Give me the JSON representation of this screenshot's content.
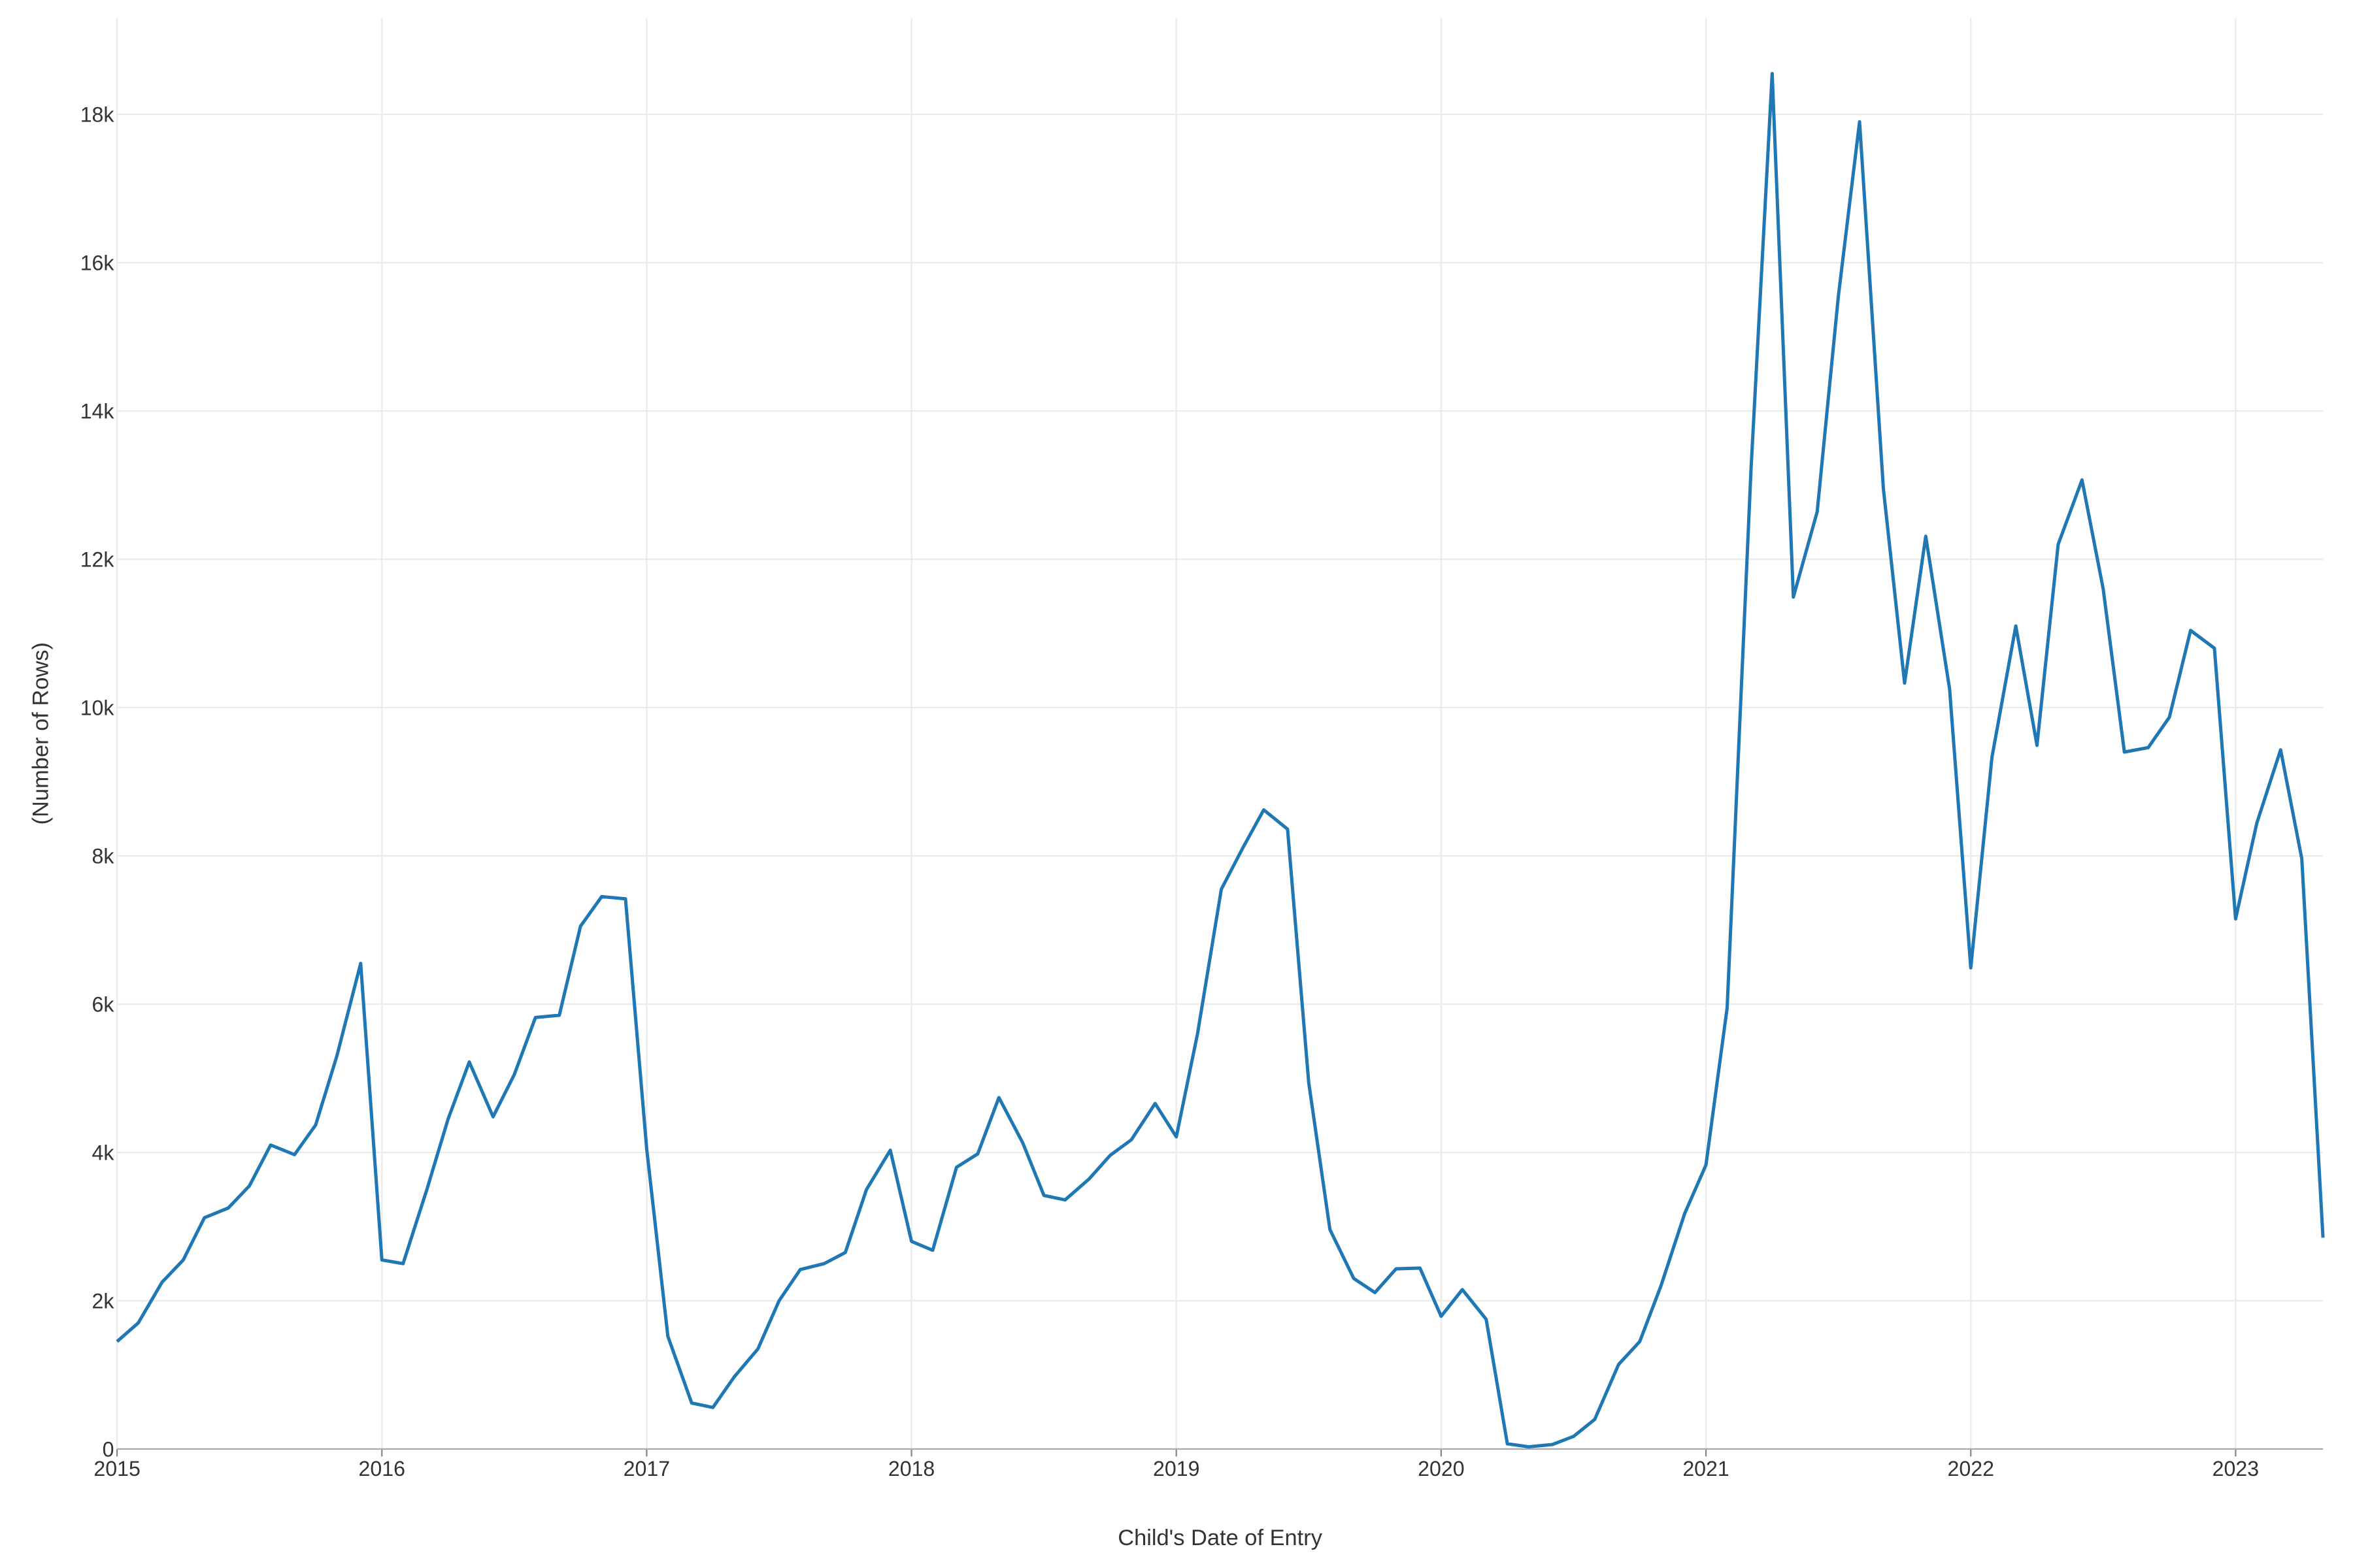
{
  "chart_data": {
    "type": "line",
    "x_label": "Child's Date of Entry",
    "y_label": "(Number of Rows)",
    "x": [
      2015.0,
      2015.08,
      2015.17,
      2015.25,
      2015.33,
      2015.42,
      2015.5,
      2015.58,
      2015.67,
      2015.75,
      2015.83,
      2015.92,
      2016.0,
      2016.08,
      2016.17,
      2016.25,
      2016.33,
      2016.42,
      2016.5,
      2016.58,
      2016.67,
      2016.75,
      2016.83,
      2016.92,
      2017.0,
      2017.08,
      2017.17,
      2017.25,
      2017.33,
      2017.42,
      2017.5,
      2017.58,
      2017.67,
      2017.75,
      2017.83,
      2017.92,
      2018.0,
      2018.08,
      2018.17,
      2018.25,
      2018.33,
      2018.42,
      2018.5,
      2018.58,
      2018.67,
      2018.75,
      2018.83,
      2018.92,
      2019.0,
      2019.08,
      2019.17,
      2019.25,
      2019.33,
      2019.42,
      2019.5,
      2019.58,
      2019.67,
      2019.75,
      2019.83,
      2019.92,
      2020.0,
      2020.08,
      2020.17,
      2020.25,
      2020.33,
      2020.42,
      2020.5,
      2020.58,
      2020.67,
      2020.75,
      2020.83,
      2020.92,
      2021.0,
      2021.08,
      2021.17,
      2021.25,
      2021.33,
      2021.42,
      2021.5,
      2021.58,
      2021.67,
      2021.75,
      2021.83,
      2021.92,
      2022.0,
      2022.08,
      2022.17,
      2022.25,
      2022.33,
      2022.42,
      2022.5,
      2022.58,
      2022.67,
      2022.75,
      2022.83,
      2022.92,
      2023.0,
      2023.08,
      2023.17,
      2023.25,
      2023.33
    ],
    "series": [
      {
        "color": "#1f77b4",
        "values": [
          1450,
          1700,
          2250,
          2550,
          3120,
          3250,
          3550,
          4100,
          3970,
          4370,
          5300,
          6550,
          2550,
          2500,
          3500,
          4450,
          5220,
          4480,
          5050,
          5820,
          5850,
          7050,
          7450,
          7420,
          4050,
          1520,
          620,
          560,
          970,
          1350,
          2000,
          2420,
          2500,
          2650,
          3500,
          4030,
          2800,
          2680,
          3800,
          3980,
          4740,
          4130,
          3420,
          3360,
          3640,
          3960,
          4170,
          4660,
          4210,
          5600,
          7550,
          8100,
          8620,
          8360,
          4940,
          2960,
          2300,
          2110,
          2430,
          2440,
          1790,
          2150,
          1750,
          70,
          30,
          60,
          170,
          400,
          1140,
          1450,
          2200,
          3180,
          3830,
          5950,
          13200,
          18550,
          11490,
          12640,
          15550,
          17900,
          12950,
          10330,
          12310,
          10250,
          6490,
          9330,
          11100,
          9490,
          12200,
          13070,
          11600,
          9400,
          9460,
          9870,
          11040,
          10800,
          7150,
          8440,
          9430,
          7960,
          2850
        ]
      }
    ],
    "xlim": [
      2015.0,
      2023.33
    ],
    "xticks": [
      2015,
      2016,
      2017,
      2018,
      2019,
      2020,
      2021,
      2022,
      2023
    ],
    "ylim": [
      0,
      19300
    ],
    "yticks": [
      0,
      {
        "value": 2000,
        "label": "2k"
      },
      {
        "value": 4000,
        "label": "4k"
      },
      {
        "value": 6000,
        "label": "6k"
      },
      {
        "value": 8000,
        "label": "8k"
      },
      {
        "value": 10000,
        "label": "10k"
      },
      {
        "value": 12000,
        "label": "12k"
      },
      {
        "value": 14000,
        "label": "14k"
      },
      {
        "value": 16000,
        "label": "16k"
      },
      {
        "value": 18000,
        "label": "18k"
      }
    ],
    "grid": true
  }
}
